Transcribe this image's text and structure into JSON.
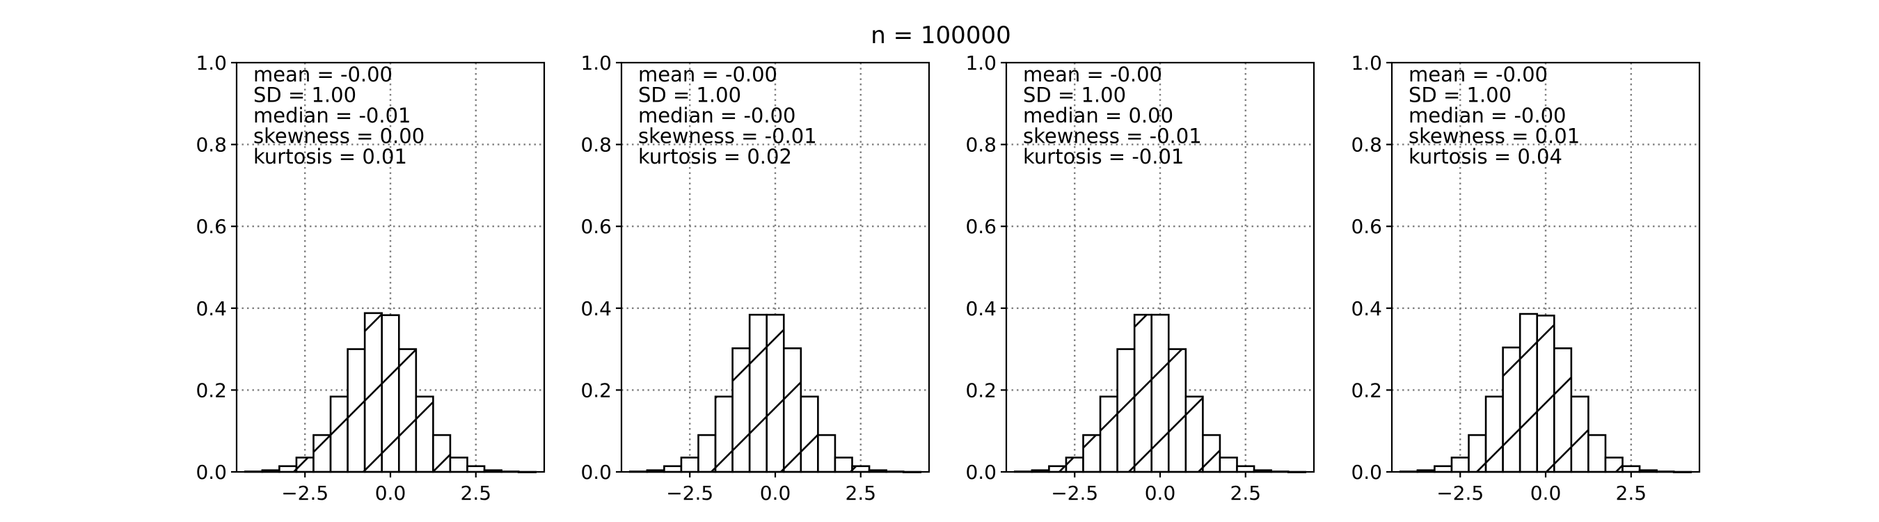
{
  "figure": {
    "title": "n = 100000"
  },
  "chart_data": [
    {
      "type": "bar",
      "title": "",
      "xlabel": "",
      "ylabel": "",
      "xlim": [
        -4.5,
        4.5
      ],
      "ylim": [
        0,
        1.0
      ],
      "xticks": [
        -2.5,
        0.0,
        2.5
      ],
      "xtick_labels": [
        "−2.5",
        "0.0",
        "2.5"
      ],
      "yticks": [
        0.0,
        0.2,
        0.4,
        0.6,
        0.8,
        1.0
      ],
      "ytick_labels": [
        "0.0",
        "0.2",
        "0.4",
        "0.6",
        "0.8",
        "1.0"
      ],
      "grid": true,
      "bin_edges": [
        -4.25,
        -3.75,
        -3.25,
        -2.75,
        -2.25,
        -1.75,
        -1.25,
        -0.75,
        -0.25,
        0.25,
        0.75,
        1.25,
        1.75,
        2.25,
        2.75,
        3.25,
        3.75,
        4.25
      ],
      "values": [
        0.001,
        0.004,
        0.014,
        0.035,
        0.09,
        0.184,
        0.3,
        0.388,
        0.383,
        0.3,
        0.184,
        0.09,
        0.035,
        0.014,
        0.004,
        0.001,
        0.0
      ],
      "annotations": [
        "mean = -0.00",
        "SD = 1.00",
        "median = -0.01",
        "skewness = 0.00",
        "kurtosis = 0.01"
      ]
    },
    {
      "type": "bar",
      "title": "",
      "xlabel": "",
      "ylabel": "",
      "xlim": [
        -4.5,
        4.5
      ],
      "ylim": [
        0,
        1.0
      ],
      "xticks": [
        -2.5,
        0.0,
        2.5
      ],
      "xtick_labels": [
        "−2.5",
        "0.0",
        "2.5"
      ],
      "yticks": [
        0.0,
        0.2,
        0.4,
        0.6,
        0.8,
        1.0
      ],
      "ytick_labels": [
        "0.0",
        "0.2",
        "0.4",
        "0.6",
        "0.8",
        "1.0"
      ],
      "grid": true,
      "bin_edges": [
        -4.25,
        -3.75,
        -3.25,
        -2.75,
        -2.25,
        -1.75,
        -1.25,
        -0.75,
        -0.25,
        0.25,
        0.75,
        1.25,
        1.75,
        2.25,
        2.75,
        3.25,
        3.75,
        4.25
      ],
      "values": [
        0.001,
        0.004,
        0.014,
        0.035,
        0.09,
        0.184,
        0.302,
        0.384,
        0.384,
        0.302,
        0.184,
        0.09,
        0.035,
        0.014,
        0.004,
        0.001,
        0.0
      ],
      "annotations": [
        "mean = -0.00",
        "SD = 1.00",
        "median = -0.00",
        "skewness = -0.01",
        "kurtosis = 0.02"
      ]
    },
    {
      "type": "bar",
      "title": "",
      "xlabel": "",
      "ylabel": "",
      "xlim": [
        -4.5,
        4.5
      ],
      "ylim": [
        0,
        1.0
      ],
      "xticks": [
        -2.5,
        0.0,
        2.5
      ],
      "xtick_labels": [
        "−2.5",
        "0.0",
        "2.5"
      ],
      "yticks": [
        0.0,
        0.2,
        0.4,
        0.6,
        0.8,
        1.0
      ],
      "ytick_labels": [
        "0.0",
        "0.2",
        "0.4",
        "0.6",
        "0.8",
        "1.0"
      ],
      "grid": true,
      "bin_edges": [
        -4.25,
        -3.75,
        -3.25,
        -2.75,
        -2.25,
        -1.75,
        -1.25,
        -0.75,
        -0.25,
        0.25,
        0.75,
        1.25,
        1.75,
        2.25,
        2.75,
        3.25,
        3.75,
        4.25
      ],
      "values": [
        0.001,
        0.004,
        0.014,
        0.035,
        0.09,
        0.184,
        0.3,
        0.384,
        0.384,
        0.3,
        0.184,
        0.09,
        0.035,
        0.014,
        0.004,
        0.001,
        0.0
      ],
      "annotations": [
        "mean = -0.00",
        "SD = 1.00",
        "median = 0.00",
        "skewness = -0.01",
        "kurtosis = -0.01"
      ]
    },
    {
      "type": "bar",
      "title": "",
      "xlabel": "",
      "ylabel": "",
      "xlim": [
        -4.5,
        4.5
      ],
      "ylim": [
        0,
        1.0
      ],
      "xticks": [
        -2.5,
        0.0,
        2.5
      ],
      "xtick_labels": [
        "−2.5",
        "0.0",
        "2.5"
      ],
      "yticks": [
        0.0,
        0.2,
        0.4,
        0.6,
        0.8,
        1.0
      ],
      "ytick_labels": [
        "0.0",
        "0.2",
        "0.4",
        "0.6",
        "0.8",
        "1.0"
      ],
      "grid": true,
      "bin_edges": [
        -4.25,
        -3.75,
        -3.25,
        -2.75,
        -2.25,
        -1.75,
        -1.25,
        -0.75,
        -0.25,
        0.25,
        0.75,
        1.25,
        1.75,
        2.25,
        2.75,
        3.25,
        3.75,
        4.25
      ],
      "values": [
        0.001,
        0.004,
        0.014,
        0.035,
        0.09,
        0.184,
        0.304,
        0.386,
        0.382,
        0.302,
        0.184,
        0.09,
        0.035,
        0.014,
        0.004,
        0.001,
        0.0
      ],
      "annotations": [
        "mean = -0.00",
        "SD = 1.00",
        "median = -0.00",
        "skewness = 0.01",
        "kurtosis = 0.04"
      ]
    }
  ]
}
